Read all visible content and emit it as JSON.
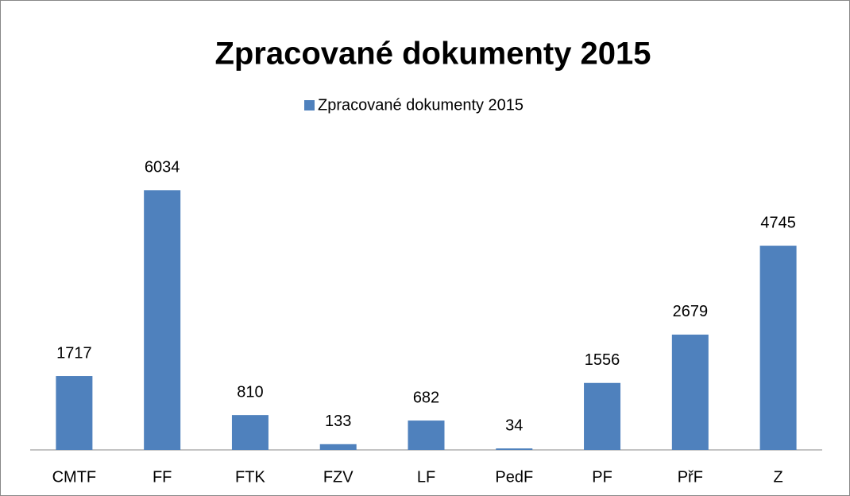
{
  "chart_data": {
    "type": "bar",
    "title": "Zpracované dokumenty 2015",
    "legend": "Zpracované dokumenty 2015",
    "categories": [
      "CMTF",
      "FF",
      "FTK",
      "FZV",
      "LF",
      "PedF",
      "PF",
      "PřF",
      "Z"
    ],
    "values": [
      1717,
      6034,
      810,
      133,
      682,
      34,
      1556,
      2679,
      4745
    ],
    "color": "#4f81bd",
    "ylim": [
      0,
      7000
    ]
  }
}
